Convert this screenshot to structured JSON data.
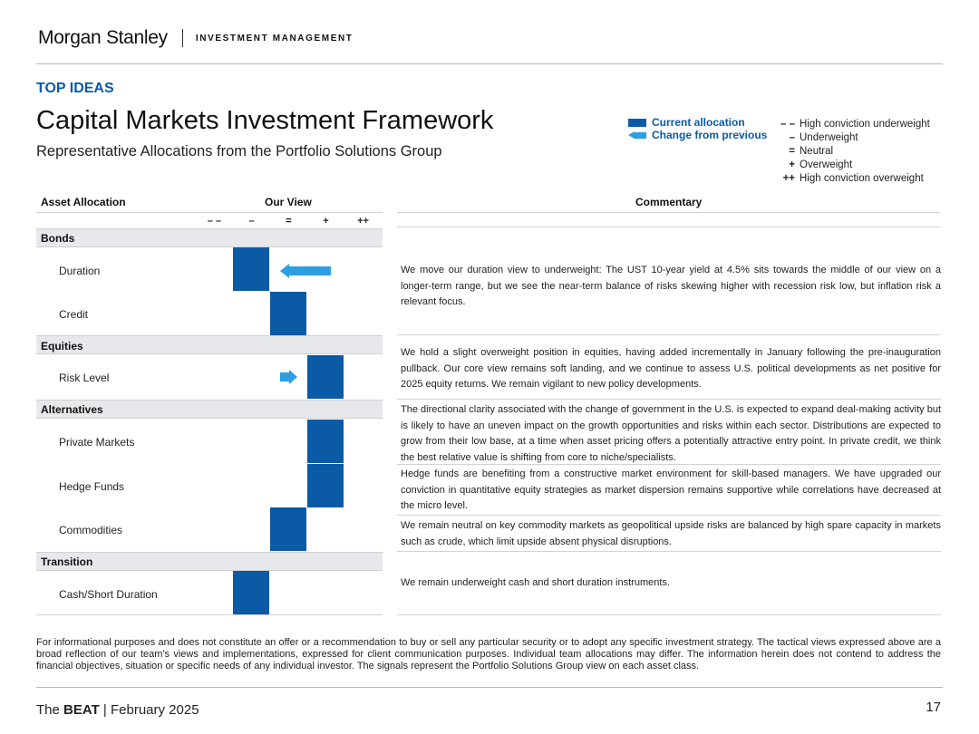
{
  "header": {
    "brand": "Morgan Stanley",
    "division": "INVESTMENT MANAGEMENT",
    "section": "TOP IDEAS",
    "title": "Capital Markets Investment Framework",
    "subtitle": "Representative Allocations from the Portfolio Solutions Group"
  },
  "legend": {
    "current_allocation": "Current allocation",
    "change_from_previous": "Change from previous",
    "symbols": [
      {
        "sym": "– –",
        "label": "High conviction underweight"
      },
      {
        "sym": "–",
        "label": "Underweight"
      },
      {
        "sym": "=",
        "label": "Neutral"
      },
      {
        "sym": "+",
        "label": "Overweight"
      },
      {
        "sym": "++",
        "label": "High conviction overweight"
      }
    ],
    "colors": {
      "current": "#0a5aa6",
      "change": "#2d9ee2"
    }
  },
  "table": {
    "headers": {
      "asset": "Asset Allocation",
      "view": "Our View",
      "commentary": "Commentary"
    },
    "scale": [
      "– –",
      "–",
      "=",
      "+",
      "++"
    ],
    "categories": [
      {
        "label": "Bonds"
      },
      {
        "label": "Equities"
      },
      {
        "label": "Alternatives"
      },
      {
        "label": "Transition"
      }
    ],
    "assets": [
      {
        "label": "Duration",
        "current_view": "–",
        "previous_view": "+"
      },
      {
        "label": "Credit",
        "current_view": "="
      },
      {
        "label": "Risk Level",
        "current_view": "+",
        "previous_view": "="
      },
      {
        "label": "Private Markets",
        "current_view": "+"
      },
      {
        "label": "Hedge Funds",
        "current_view": "+"
      },
      {
        "label": "Commodities",
        "current_view": "="
      },
      {
        "label": "Cash/Short Duration",
        "current_view": "–"
      }
    ],
    "commentary": [
      "We move our duration view to underweight: The UST 10-year yield at 4.5% sits towards the middle of our view on a longer-term range, but we see the near-term balance of risks skewing higher with recession risk low, but inflation risk a relevant focus.",
      "We hold a slight overweight position in equities, having added incrementally in January following the pre-inauguration pullback. Our core view remains soft landing, and we continue to assess U.S. political developments as net positive for 2025 equity returns. We remain vigilant to new policy developments.",
      "The directional clarity associated with the change of government in the U.S. is expected to expand deal-making activity but is likely to have an uneven impact on the growth opportunities and risks within each sector. Distributions are expected to grow from their low base, at a time when asset pricing offers a potentially attractive entry point. In private credit, we think the best relative value is shifting from core to niche/specialists.",
      "Hedge funds are benefiting from a constructive market environment for skill-based managers. We have upgraded our conviction in quantitative equity strategies as market dispersion remains supportive while correlations have decreased at the micro level.",
      "We remain neutral on key commodity markets as geopolitical upside risks are balanced by high spare capacity in markets such as crude, which limit upside absent physical disruptions.",
      "We remain underweight cash and short duration instruments."
    ]
  },
  "disclaimer": "For informational purposes and does not constitute an offer or a recommendation to buy or sell any particular security or to adopt any specific investment strategy. The tactical views expressed above are a broad reflection of our team's views and implementations, expressed for client communication purposes. Individual team allocations may differ. The information herein does not contend to address the financial objectives, situation or specific needs of any individual investor. The signals represent the Portfolio Solutions Group view on each asset class.",
  "footer": {
    "publication_prefix": "The ",
    "publication_bold": "BEAT",
    "publication_suffix": " | February 2025",
    "page_number": "17"
  }
}
